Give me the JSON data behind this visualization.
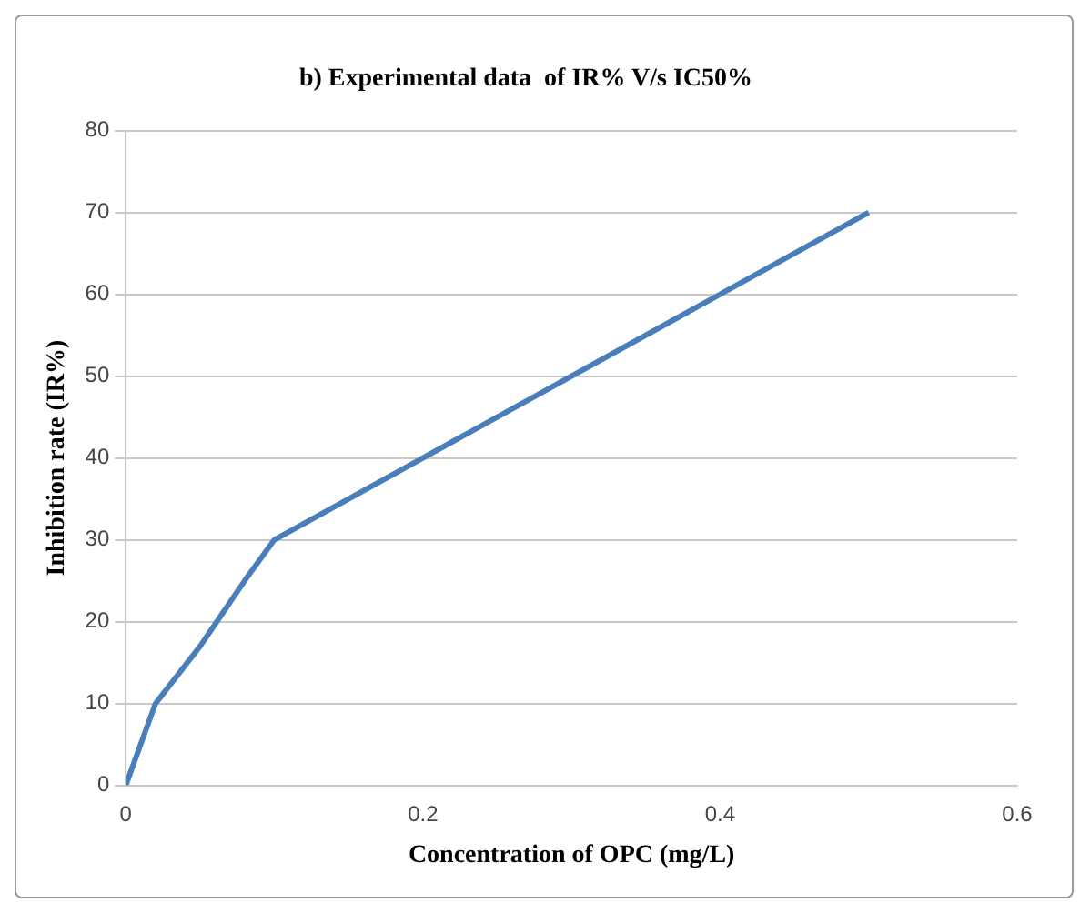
{
  "chart_data": {
    "type": "line",
    "title": "b) Experimental data  of IR% V/s IC50%",
    "xlabel": "Concentration of OPC (mg/L)",
    "ylabel": "Inhibition rate (IR%)",
    "x": [
      0,
      0.02,
      0.05,
      0.08,
      0.1,
      0.5
    ],
    "series": [
      {
        "color": "#4a7ebb",
        "values": [
          0,
          10,
          17,
          25,
          30,
          70
        ]
      }
    ],
    "xlim": [
      0,
      0.6
    ],
    "xticks": [
      0,
      0.2,
      0.4,
      0.6
    ],
    "ylim": [
      0,
      80
    ],
    "yticks": [
      0,
      10,
      20,
      30,
      40,
      50,
      60,
      70,
      80
    ],
    "grid": "y",
    "legend": false,
    "marker": "none"
  }
}
